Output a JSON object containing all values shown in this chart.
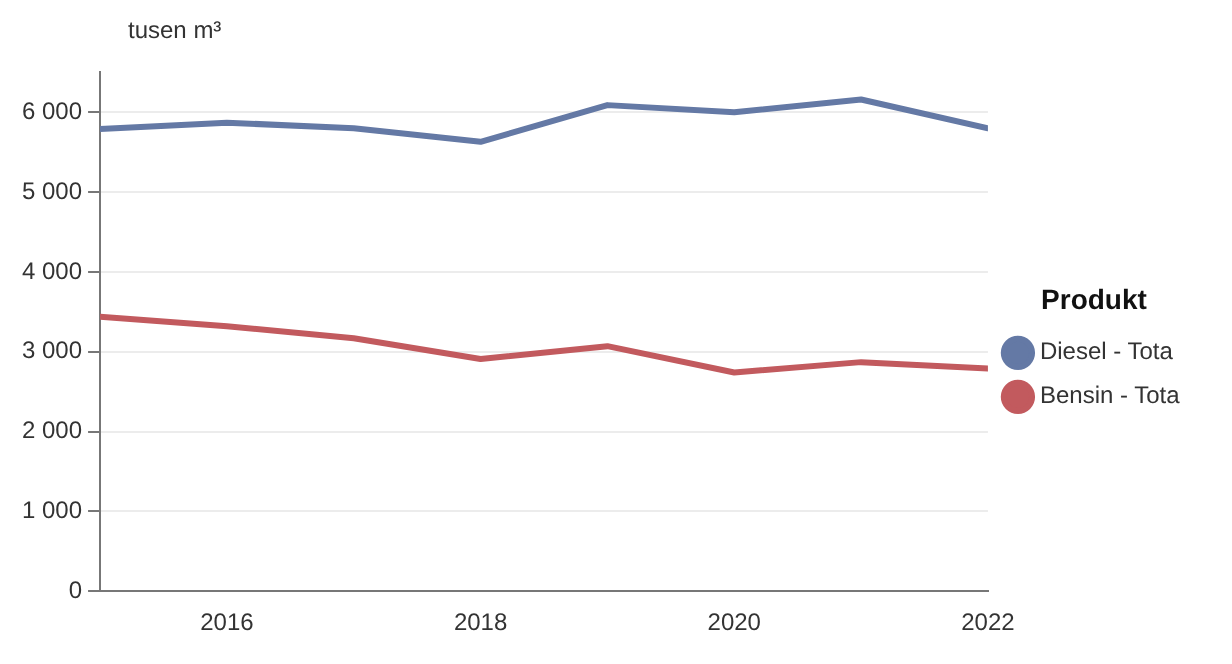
{
  "chart_data": {
    "type": "line",
    "ylabel": "tusen m³",
    "legend_title": "Produkt",
    "x": [
      2015,
      2016,
      2017,
      2018,
      2019,
      2020,
      2021,
      2022
    ],
    "xlim": [
      2015,
      2022
    ],
    "xticks": [
      2016,
      2018,
      2020,
      2022
    ],
    "ylim": [
      0,
      6500
    ],
    "yticks": [
      0,
      {
        "value": 1000,
        "label": "1 000"
      },
      {
        "value": 2000,
        "label": "2 000"
      },
      {
        "value": 3000,
        "label": "3 000"
      },
      {
        "value": 4000,
        "label": "4 000"
      },
      {
        "value": 5000,
        "label": "5 000"
      },
      {
        "value": 6000,
        "label": "6 000"
      }
    ],
    "grid": "y",
    "legend": "right",
    "marker": "none",
    "line_style": "solid",
    "series": [
      {
        "name": "Diesel - Tota",
        "color": "#6479a5",
        "values": [
          5790,
          5870,
          5800,
          5630,
          6090,
          6000,
          6160,
          5800
        ]
      },
      {
        "name": "Bensin - Tota",
        "color": "#c25a5e",
        "values": [
          3440,
          3320,
          3170,
          2910,
          3070,
          2740,
          2870,
          2790
        ]
      }
    ]
  }
}
